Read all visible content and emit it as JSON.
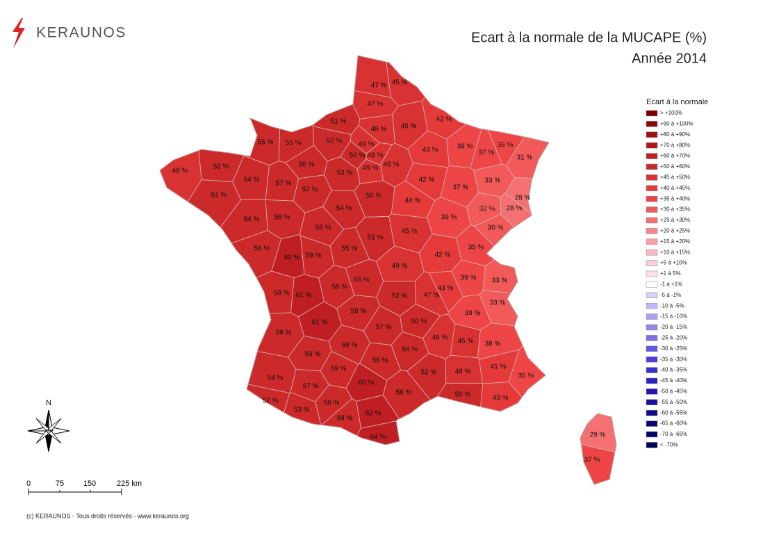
{
  "header": {
    "brand": "KERAUNOS",
    "title": "Ecart à la normale de la MUCAPE (%)",
    "subtitle": "Année 2014"
  },
  "legend": {
    "title": "Ecart à la normale",
    "items": [
      {
        "label": "> +100%",
        "min": 100,
        "color": "#7a0000"
      },
      {
        "label": "+90 à +100%",
        "min": 90,
        "max": 100,
        "color": "#8c0a0a"
      },
      {
        "label": "+80 à +90%",
        "min": 80,
        "max": 90,
        "color": "#a01010"
      },
      {
        "label": "+70 à +80%",
        "min": 70,
        "max": 80,
        "color": "#b01818"
      },
      {
        "label": "+60 à +70%",
        "min": 60,
        "max": 70,
        "color": "#bf1f22"
      },
      {
        "label": "+50 à +60%",
        "min": 50,
        "max": 60,
        "color": "#cc2a2a"
      },
      {
        "label": "+45 à +50%",
        "min": 45,
        "max": 50,
        "color": "#d93232"
      },
      {
        "label": "+40 à +45%",
        "min": 40,
        "max": 45,
        "color": "#e43a3a"
      },
      {
        "label": "+35 à +40%",
        "min": 35,
        "max": 40,
        "color": "#ee4646"
      },
      {
        "label": "+30 à +35%",
        "min": 30,
        "max": 35,
        "color": "#f25a5a"
      },
      {
        "label": "+25 à +30%",
        "min": 25,
        "max": 30,
        "color": "#f57070"
      },
      {
        "label": "+20 à +25%",
        "min": 20,
        "max": 25,
        "color": "#f78888"
      },
      {
        "label": "+15 à +20%",
        "min": 15,
        "max": 20,
        "color": "#f9a0a8"
      },
      {
        "label": "+10 à +15%",
        "min": 10,
        "max": 15,
        "color": "#fbb8c0"
      },
      {
        "label": "+5 à +10%",
        "min": 5,
        "max": 10,
        "color": "#fcccd8"
      },
      {
        "label": "+1 à 5%",
        "min": 1,
        "max": 5,
        "color": "#fde0ea"
      },
      {
        "label": "-1 à +1%",
        "min": -1,
        "max": 1,
        "color": "#ffffff"
      },
      {
        "label": "-5 à -1%",
        "min": -5,
        "max": -1,
        "color": "#d8d0f8"
      },
      {
        "label": "-10 à -5%",
        "min": -10,
        "max": -5,
        "color": "#c0b8f4"
      },
      {
        "label": "-15 à -10%",
        "min": -15,
        "max": -10,
        "color": "#a8a0f0"
      },
      {
        "label": "-20 à -15%",
        "min": -20,
        "max": -15,
        "color": "#9088ec"
      },
      {
        "label": "-25 à -20%",
        "min": -25,
        "max": -20,
        "color": "#7870e8"
      },
      {
        "label": "-30 à -25%",
        "min": -30,
        "max": -25,
        "color": "#6058e4"
      },
      {
        "label": "-35 à -30%",
        "min": -35,
        "max": -30,
        "color": "#4840dc"
      },
      {
        "label": "-40 à -35%",
        "min": -40,
        "max": -35,
        "color": "#3830d0"
      },
      {
        "label": "-45 à -40%",
        "min": -45,
        "max": -40,
        "color": "#2c24c0"
      },
      {
        "label": "-50 à -45%",
        "min": -50,
        "max": -45,
        "color": "#2018b0"
      },
      {
        "label": "-55 à -50%",
        "min": -55,
        "max": -50,
        "color": "#18129c"
      },
      {
        "label": "-60 à -55%",
        "min": -60,
        "max": -55,
        "color": "#100c88"
      },
      {
        "label": "-65 à -60%",
        "min": -65,
        "max": -60,
        "color": "#0a0878"
      },
      {
        "label": "-70 à -65%",
        "min": -70,
        "max": -65,
        "color": "#060468"
      },
      {
        "label": "< -70%",
        "max": -70,
        "color": "#02025a"
      }
    ]
  },
  "departments": [
    {
      "value": 47,
      "label": "47 %"
    },
    {
      "value": 45,
      "label": "45 %"
    },
    {
      "value": 47,
      "label": "47 %"
    },
    {
      "value": 51,
      "label": "51 %"
    },
    {
      "value": 48,
      "label": "48 %"
    },
    {
      "value": 45,
      "label": "45 %"
    },
    {
      "value": 42,
      "label": "42 %"
    },
    {
      "value": 55,
      "label": "55 %"
    },
    {
      "value": 55,
      "label": "55 %"
    },
    {
      "value": 52,
      "label": "52 %"
    },
    {
      "value": 49,
      "label": "49 %"
    },
    {
      "value": 43,
      "label": "43 %"
    },
    {
      "value": 39,
      "label": "39 %"
    },
    {
      "value": 36,
      "label": "36 %"
    },
    {
      "value": 37,
      "label": "37 %"
    },
    {
      "value": 31,
      "label": "31 %"
    },
    {
      "value": 50,
      "label": "50 %"
    },
    {
      "value": 48,
      "label": "48 %"
    },
    {
      "value": 46,
      "label": "46 %"
    },
    {
      "value": 49,
      "label": "49 %"
    },
    {
      "value": 52,
      "label": "52 %"
    },
    {
      "value": 48,
      "label": "48 %"
    },
    {
      "value": 56,
      "label": "56 %"
    },
    {
      "value": 53,
      "label": "53 %"
    },
    {
      "value": 54,
      "label": "54 %"
    },
    {
      "value": 57,
      "label": "57 %"
    },
    {
      "value": 57,
      "label": "57 %"
    },
    {
      "value": 42,
      "label": "42 %"
    },
    {
      "value": 33,
      "label": "33 %"
    },
    {
      "value": 37,
      "label": "37 %"
    },
    {
      "value": 51,
      "label": "51 %"
    },
    {
      "value": 50,
      "label": "50 %"
    },
    {
      "value": 44,
      "label": "44 %"
    },
    {
      "value": 28,
      "label": "28 %"
    },
    {
      "value": 32,
      "label": "32 %"
    },
    {
      "value": 28,
      "label": "28 %"
    },
    {
      "value": 54,
      "label": "54 %"
    },
    {
      "value": 58,
      "label": "58 %"
    },
    {
      "value": 54,
      "label": "54 %"
    },
    {
      "value": 58,
      "label": "58 %"
    },
    {
      "value": 39,
      "label": "39 %"
    },
    {
      "value": 30,
      "label": "30 %"
    },
    {
      "value": 45,
      "label": "45 %"
    },
    {
      "value": 51,
      "label": "51 %"
    },
    {
      "value": 56,
      "label": "56 %"
    },
    {
      "value": 55,
      "label": "55 %"
    },
    {
      "value": 35,
      "label": "35 %"
    },
    {
      "value": 60,
      "label": "60 %"
    },
    {
      "value": 59,
      "label": "59 %"
    },
    {
      "value": 42,
      "label": "42 %"
    },
    {
      "value": 49,
      "label": "49 %"
    },
    {
      "value": 39,
      "label": "39 %"
    },
    {
      "value": 33,
      "label": "33 %"
    },
    {
      "value": 56,
      "label": "56 %"
    },
    {
      "value": 58,
      "label": "58 %"
    },
    {
      "value": 58,
      "label": "58 %"
    },
    {
      "value": 61,
      "label": "61 %"
    },
    {
      "value": 43,
      "label": "43 %"
    },
    {
      "value": 47,
      "label": "47 %"
    },
    {
      "value": 52,
      "label": "52 %"
    },
    {
      "value": 33,
      "label": "33 %"
    },
    {
      "value": 58,
      "label": "58 %"
    },
    {
      "value": 39,
      "label": "39 %"
    },
    {
      "value": 61,
      "label": "61 %"
    },
    {
      "value": 50,
      "label": "50 %"
    },
    {
      "value": 57,
      "label": "57 %"
    },
    {
      "value": 59,
      "label": "59 %"
    },
    {
      "value": 48,
      "label": "48 %"
    },
    {
      "value": 45,
      "label": "45 %"
    },
    {
      "value": 38,
      "label": "38 %"
    },
    {
      "value": 59,
      "label": "59 %"
    },
    {
      "value": 59,
      "label": "59 %"
    },
    {
      "value": 54,
      "label": "54 %"
    },
    {
      "value": 58,
      "label": "58 %"
    },
    {
      "value": 41,
      "label": "41 %"
    },
    {
      "value": 59,
      "label": "59 %"
    },
    {
      "value": 52,
      "label": "52 %"
    },
    {
      "value": 48,
      "label": "48 %"
    },
    {
      "value": 35,
      "label": "35 %"
    },
    {
      "value": 54,
      "label": "54 %"
    },
    {
      "value": 57,
      "label": "57 %"
    },
    {
      "value": 60,
      "label": "60 %"
    },
    {
      "value": 58,
      "label": "58 %"
    },
    {
      "value": 50,
      "label": "50 %"
    },
    {
      "value": 43,
      "label": "43 %"
    },
    {
      "value": 52,
      "label": "52 %"
    },
    {
      "value": 58,
      "label": "58 %"
    },
    {
      "value": 53,
      "label": "53 %"
    },
    {
      "value": 59,
      "label": "59 %"
    },
    {
      "value": 62,
      "label": "62 %"
    },
    {
      "value": 64,
      "label": "64 %"
    },
    {
      "value": 29,
      "label": "29 %"
    },
    {
      "value": 37,
      "label": "37 %"
    }
  ],
  "compass": {
    "north": "N"
  },
  "scale": {
    "labels": [
      "0",
      "75",
      "150",
      "225 km"
    ]
  },
  "footer": {
    "copyright": "(c) KERAUNOS - Tous droits réservés - www.keraunos.org"
  }
}
